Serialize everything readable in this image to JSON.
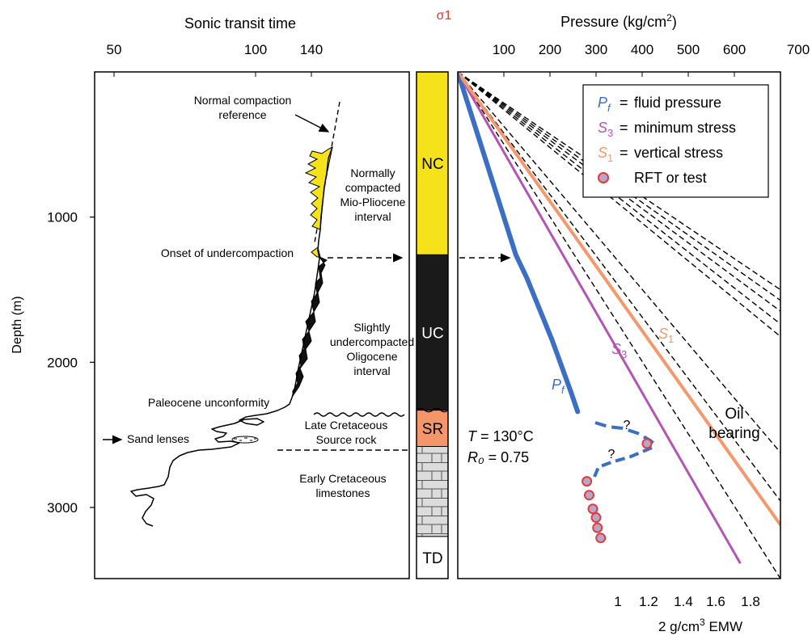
{
  "chart_data": [
    {
      "type": "line",
      "title": "Sonic transit time",
      "ylabel": "Depth (m)",
      "x_ticks": [
        "50",
        "100",
        "140"
      ],
      "y_ticks": [
        "1000",
        "2000",
        "3000"
      ],
      "ylim": [
        3490,
        0
      ],
      "annotations": {
        "normal": "Normal compaction\nreference",
        "onset": "Onset of undercompaction",
        "nc_interval": "Normally\ncompacted\nMio-Pliocene\ninterval",
        "uc_interval": "Slightly\nundercompacted\nOligocene\ninterval",
        "paleocene": "Paleocene unconformity",
        "late_cret": "Late Cretaceous\nSource rock",
        "sand": "Sand lenses",
        "early_cret": "Early Cretaceous\nlimestones"
      }
    },
    {
      "type": "column",
      "title": "σ1",
      "units": [
        {
          "label": "NC",
          "top": 0,
          "bottom": 1260,
          "color": "#f5e21a"
        },
        {
          "label": "UC",
          "top": 1260,
          "bottom": 2330,
          "color": "#1a1a1a"
        },
        {
          "label": "SR",
          "top": 2330,
          "bottom": 2580,
          "color": "#f5956a"
        },
        {
          "label": "",
          "top": 2580,
          "bottom": 3200,
          "color": "#dddddd"
        },
        {
          "label": "TD",
          "top": 3200,
          "bottom": 3490,
          "color": "#ffffff"
        }
      ]
    },
    {
      "type": "line",
      "title": "Pressure (kg/cm²)",
      "x_ticks": [
        "100",
        "200",
        "300",
        "400",
        "500",
        "600",
        "700"
      ],
      "xlim": [
        0,
        700
      ],
      "ylim": [
        0,
        3490
      ],
      "bottom_ticks": [
        "1",
        "1.2",
        "1.4",
        "1.6",
        "1.8",
        "2 g/cm³ EMW"
      ],
      "emw_lines": [
        1.0,
        1.2,
        1.4,
        1.6,
        1.8,
        2.0
      ],
      "series": [
        {
          "name": "fluid pressure",
          "symbol": "P_f",
          "color": "#3a6fc4",
          "points": [
            [
              0,
              0
            ],
            [
              126,
              1260
            ],
            [
              150,
              1420
            ],
            [
              205,
              1850
            ],
            [
              245,
              2200
            ],
            [
              260,
              2340
            ]
          ]
        },
        {
          "name": "minimum stress",
          "symbol": "S_3",
          "color": "#b454b5",
          "points": [
            [
              0,
              0
            ],
            [
              612,
              3380
            ]
          ]
        },
        {
          "name": "vertical stress",
          "symbol": "S_1",
          "color": "#f4996b",
          "points": [
            [
              0,
              0
            ],
            [
              700,
              3120
            ]
          ]
        }
      ],
      "rft_points": [
        [
          307,
          2560
        ],
        [
          280,
          2820
        ],
        [
          285,
          2915
        ],
        [
          293,
          3010
        ],
        [
          300,
          3070
        ],
        [
          303,
          3140
        ],
        [
          310,
          3210
        ]
      ],
      "legend": [
        {
          "sym": "P",
          "sub": "f",
          "text": "fluid pressure",
          "color": "#3a6fc4"
        },
        {
          "sym": "S",
          "sub": "3",
          "text": "minimum stress",
          "color": "#b454b5"
        },
        {
          "sym": "S",
          "sub": "1",
          "text": "vertical stress",
          "color": "#f4996b"
        },
        {
          "sym": "",
          "sub": "",
          "text": "RFT or test",
          "color": "#e84a4a"
        }
      ],
      "labels": {
        "temp": "T = 130°C",
        "ro": "R₀ = 0.75",
        "oil": "Oil\nbearing",
        "q": "?"
      }
    }
  ]
}
